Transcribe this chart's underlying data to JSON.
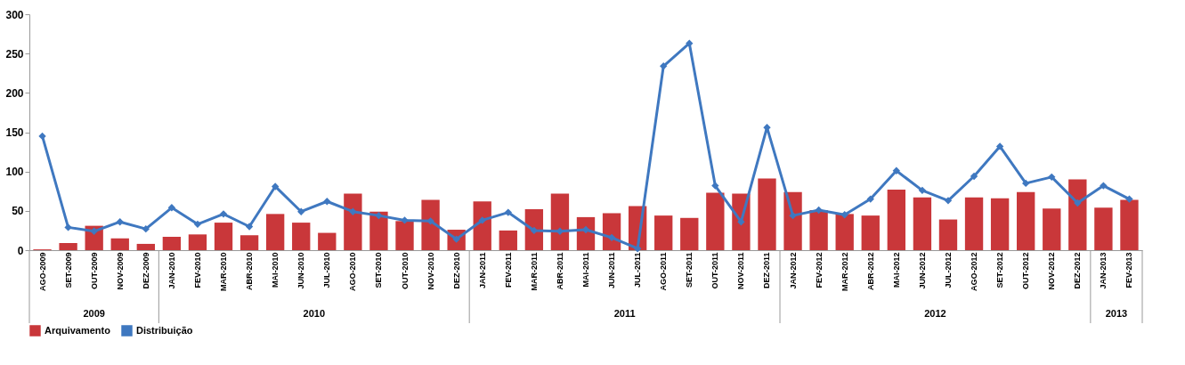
{
  "chart_data": {
    "type": "bar",
    "categories": [
      "AGO-2009",
      "SET-2009",
      "OUT-2009",
      "NOV-2009",
      "DEZ-2009",
      "JAN-2010",
      "FEV-2010",
      "MAR-2010",
      "ABR-2010",
      "MAI-2010",
      "JUN-2010",
      "JUL-2010",
      "AGO-2010",
      "SET-2010",
      "OUT-2010",
      "NOV-2010",
      "DEZ-2010",
      "JAN-2011",
      "FEV-2011",
      "MAR-2011",
      "ABR-2011",
      "MAI-2011",
      "JUN-2011",
      "JUL-2011",
      "AGO-2011",
      "SET-2011",
      "OUT-2011",
      "NOV-2011",
      "DEZ-2011",
      "JAN-2012",
      "FEV-2012",
      "MAR-2012",
      "ABR-2012",
      "MAI-2012",
      "JUN-2012",
      "JUL-2012",
      "AGO-2012",
      "SET-2012",
      "OUT-2012",
      "NOV-2012",
      "DEZ-2012",
      "JAN-2013",
      "FEV-2013"
    ],
    "series": [
      {
        "name": "Arquivamento",
        "color": "#c9373a",
        "values": [
          1,
          9,
          31,
          15,
          8,
          17,
          20,
          35,
          19,
          46,
          35,
          22,
          72,
          49,
          37,
          64,
          26,
          62,
          25,
          52,
          72,
          42,
          47,
          56,
          44,
          41,
          73,
          72,
          91,
          74,
          51,
          46,
          44,
          77,
          67,
          39,
          67,
          66,
          74,
          53,
          90,
          54,
          64
        ]
      },
      {
        "name": "Distribuição",
        "type": "line",
        "color": "#3f78c0",
        "marker": "diamond",
        "values": [
          145,
          29,
          24,
          36,
          27,
          54,
          33,
          46,
          30,
          81,
          49,
          62,
          49,
          44,
          38,
          37,
          14,
          38,
          48,
          25,
          24,
          26,
          16,
          2,
          234,
          263,
          82,
          36,
          156,
          44,
          51,
          45,
          65,
          101,
          76,
          63,
          94,
          132,
          85,
          93,
          60,
          82,
          65
        ]
      }
    ],
    "ylim": [
      0,
      300
    ],
    "yticks": [
      0,
      50,
      100,
      150,
      200,
      250,
      300
    ],
    "grid": false,
    "legend": "bottom",
    "annotations": [
      "2009",
      "2010",
      "2011",
      "2012",
      "2013"
    ]
  }
}
